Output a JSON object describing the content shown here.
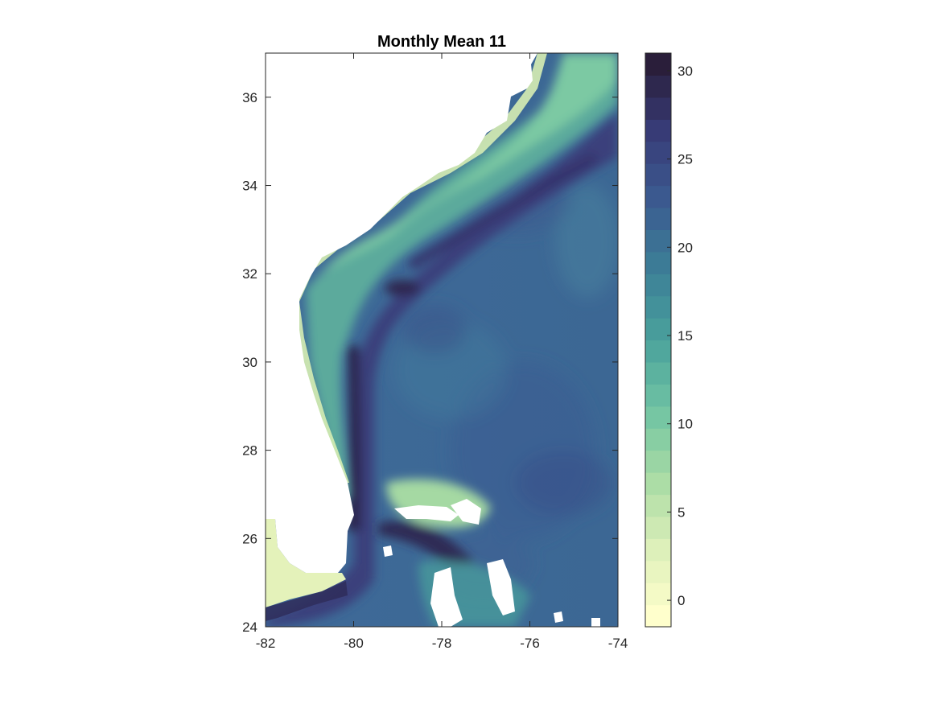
{
  "chart_data": {
    "type": "heatmap",
    "title": "Monthly Mean 11",
    "xlabel": "",
    "ylabel": "",
    "xlim": [
      -82,
      -74
    ],
    "ylim": [
      24,
      37
    ],
    "x_ticks": [
      -82,
      -80,
      -78,
      -76,
      -74
    ],
    "y_ticks": [
      24,
      26,
      28,
      30,
      32,
      34,
      36
    ],
    "x_tick_labels": [
      "-82",
      "-80",
      "-78",
      "-76",
      "-74"
    ],
    "y_tick_labels": [
      "24",
      "26",
      "28",
      "30",
      "32",
      "34",
      "36"
    ],
    "colorbar": {
      "range": [
        -1.5,
        31
      ],
      "ticks": [
        0,
        5,
        10,
        15,
        20,
        25,
        30
      ],
      "tick_labels": [
        "0",
        "5",
        "10",
        "15",
        "20",
        "25",
        "30"
      ],
      "levels": 26,
      "colormap": [
        "#FFFFCC",
        "#DCEFB9",
        "#A8DBA4",
        "#6FC3A3",
        "#4AA29C",
        "#3C7F97",
        "#3B5C91",
        "#383C78",
        "#2A1E3A"
      ]
    },
    "no_data_color": "#FFFFFF",
    "grid": false,
    "legend": "colorbar-right"
  }
}
